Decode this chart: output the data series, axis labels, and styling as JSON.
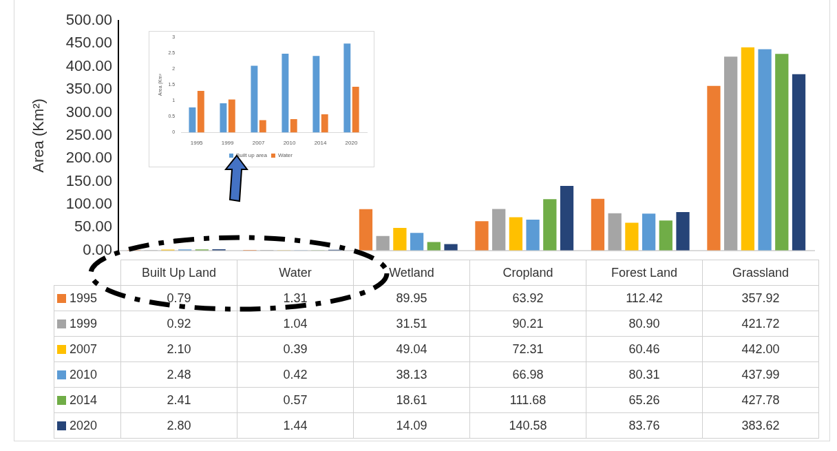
{
  "chart_data": [
    {
      "type": "bar",
      "ylabel": "Area (Km²)",
      "categories": [
        "Built Up Land",
        "Water",
        "Wetland",
        "Cropland",
        "Forest Land",
        "Grassland"
      ],
      "series": [
        {
          "name": "1995",
          "color": "#ed7d31",
          "values": [
            0.79,
            1.31,
            89.95,
            63.92,
            112.42,
            357.92
          ],
          "value_labels": [
            "0.79",
            "1.31",
            "89.95",
            "63.92",
            "112.42",
            "357.92"
          ]
        },
        {
          "name": "1999",
          "color": "#a5a5a5",
          "values": [
            0.92,
            1.04,
            31.51,
            90.21,
            80.9,
            421.72
          ],
          "value_labels": [
            "0.92",
            "1.04",
            "31.51",
            "90.21",
            "80.90",
            "421.72"
          ]
        },
        {
          "name": "2007",
          "color": "#ffc000",
          "values": [
            2.1,
            0.39,
            49.04,
            72.31,
            60.46,
            442
          ],
          "value_labels": [
            "2.10",
            "0.39",
            "49.04",
            "72.31",
            "60.46",
            "442.00"
          ]
        },
        {
          "name": "2010",
          "color": "#5b9bd5",
          "values": [
            2.48,
            0.42,
            38.13,
            66.98,
            80.31,
            437.99
          ],
          "value_labels": [
            "2.48",
            "0.42",
            "38.13",
            "66.98",
            "80.31",
            "437.99"
          ]
        },
        {
          "name": "2014",
          "color": "#70ad47",
          "values": [
            2.41,
            0.57,
            18.61,
            111.68,
            65.26,
            427.78
          ],
          "value_labels": [
            "2.41",
            "0.57",
            "18.61",
            "111.68",
            "65.26",
            "427.78"
          ]
        },
        {
          "name": "2020",
          "color": "#264478",
          "values": [
            2.8,
            1.44,
            14.09,
            140.58,
            83.76,
            383.62
          ],
          "value_labels": [
            "2.80",
            "1.44",
            "14.09",
            "140.58",
            "83.76",
            "383.62"
          ]
        }
      ],
      "ylim": [
        0,
        500
      ],
      "yticks": [
        {
          "value": 0,
          "label": "0.00"
        },
        {
          "value": 50,
          "label": "50.00"
        },
        {
          "value": 100,
          "label": "100.00"
        },
        {
          "value": 150,
          "label": "150.00"
        },
        {
          "value": 200,
          "label": "200.00"
        },
        {
          "value": 250,
          "label": "250.00"
        },
        {
          "value": 300,
          "label": "300.00"
        },
        {
          "value": 350,
          "label": "350.00"
        },
        {
          "value": 400,
          "label": "400.00"
        },
        {
          "value": 450,
          "label": "450.00"
        },
        {
          "value": 500,
          "label": "500.00"
        }
      ],
      "legend": "bottom"
    },
    {
      "type": "bar",
      "ylabel": "Area (Km²",
      "categories": [
        "1995",
        "1999",
        "2007",
        "2010",
        "2014",
        "2020"
      ],
      "series": [
        {
          "name": "Built up area",
          "color": "#5b9bd5",
          "values": [
            0.79,
            0.92,
            2.1,
            2.48,
            2.41,
            2.8
          ]
        },
        {
          "name": "Water",
          "color": "#ed7d31",
          "values": [
            1.31,
            1.04,
            0.39,
            0.42,
            0.57,
            1.44
          ]
        }
      ],
      "ylim": [
        0,
        3
      ],
      "yticks": [
        0,
        0.5,
        1,
        1.5,
        2,
        2.5,
        3
      ],
      "legend": "bottom"
    }
  ]
}
